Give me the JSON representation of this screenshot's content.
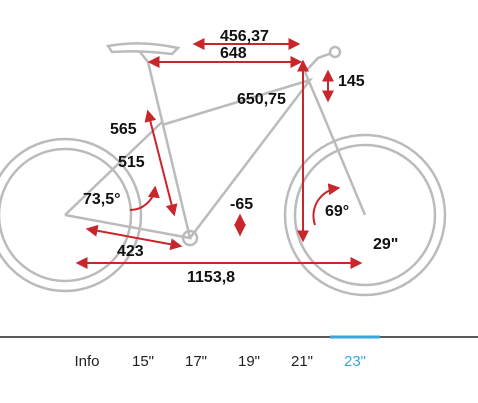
{
  "dimensions": [
    "456,37",
    "648",
    "145",
    "650,75",
    "565",
    "515",
    "73,5°",
    "-65",
    "69°",
    "29\"",
    "423",
    "1153,8"
  ],
  "tabs": {
    "items": [
      "Info",
      "15\"",
      "17\"",
      "19\"",
      "21\"",
      "23\""
    ],
    "active": 5
  }
}
